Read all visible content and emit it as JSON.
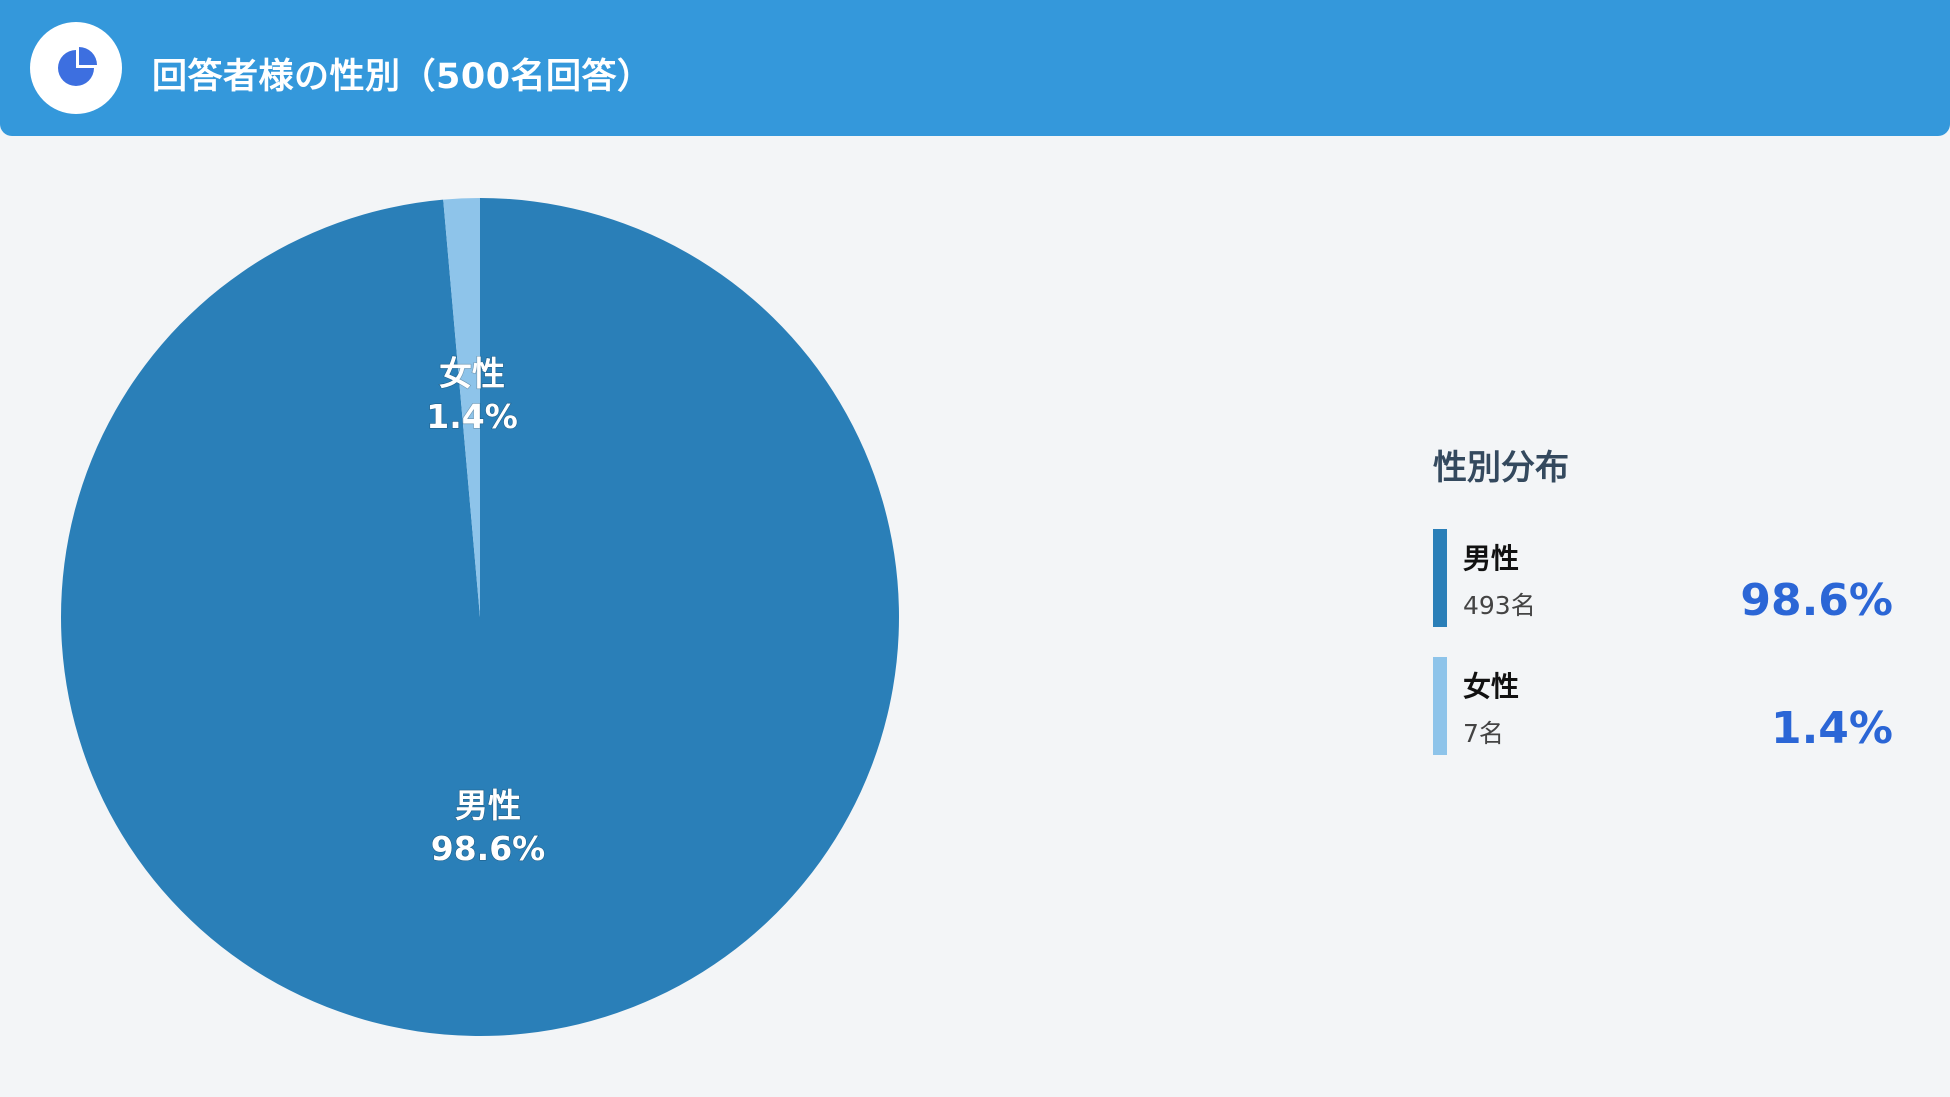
{
  "header": {
    "title": "回答者様の性別（500名回答）",
    "icon": "pie-chart-icon"
  },
  "colors": {
    "header_bg": "#3498db",
    "male": "#2a7fb8",
    "female": "#8ec4ea",
    "percent_text": "#2b66d6"
  },
  "chart_data": {
    "type": "pie",
    "title": "",
    "slices": [
      {
        "label": "男性",
        "value": 98.6,
        "count": "493名",
        "percent_label": "98.6%"
      },
      {
        "label": "女性",
        "value": 1.4,
        "count": "7名",
        "percent_label": "1.4%"
      }
    ]
  },
  "legend": {
    "title": "性別分布",
    "items": [
      {
        "name": "男性",
        "count": "493名",
        "percent": "98.6%"
      },
      {
        "name": "女性",
        "count": "7名",
        "percent": "1.4%"
      }
    ]
  }
}
